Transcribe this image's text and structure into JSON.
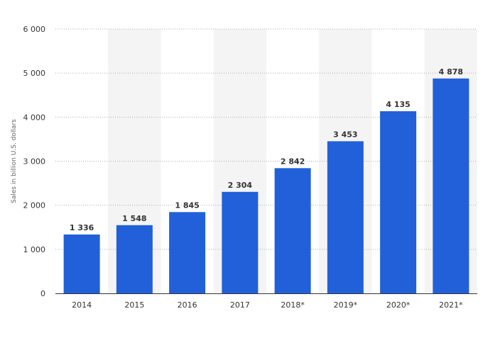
{
  "chart_data": {
    "type": "bar",
    "title": "",
    "xlabel": "",
    "ylabel": "Sales in billion U.S. dollars",
    "categories": [
      "2014",
      "2015",
      "2016",
      "2017",
      "2018*",
      "2019*",
      "2020*",
      "2021*"
    ],
    "values": [
      1336,
      1548,
      1845,
      2304,
      2842,
      3453,
      4135,
      4878
    ],
    "value_labels": [
      "1 336",
      "1 548",
      "1 845",
      "2 304",
      "2 842",
      "3 453",
      "4 135",
      "4 878"
    ],
    "ylim": [
      0,
      6000
    ],
    "y_ticks": [
      0,
      1000,
      2000,
      3000,
      4000,
      5000,
      6000
    ],
    "y_tick_labels": [
      "0",
      "1 000",
      "2 000",
      "3 000",
      "4 000",
      "5 000",
      "6 000"
    ],
    "grid": true,
    "legend": "none",
    "colors": {
      "bar": "#2160d8",
      "band": "#f4f4f4",
      "axis": "#333333"
    }
  }
}
